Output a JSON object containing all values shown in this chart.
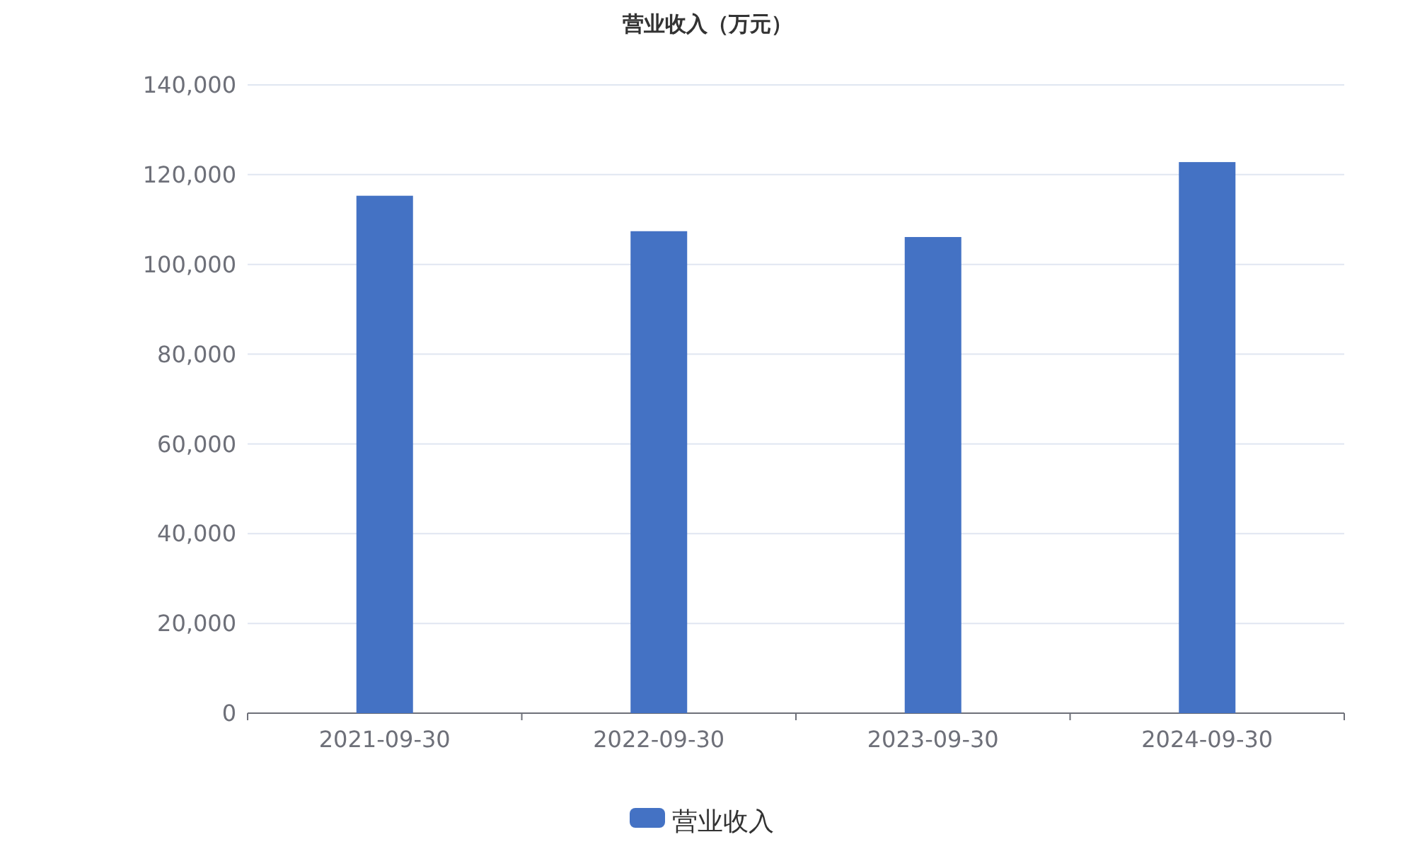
{
  "chart_data": {
    "type": "bar",
    "title": "营业收入（万元）",
    "categories": [
      "2021-09-30",
      "2022-09-30",
      "2023-09-30",
      "2024-09-30"
    ],
    "series": [
      {
        "name": "营业收入",
        "color": "#4472c4",
        "values": [
          115300,
          107400,
          106100,
          122800
        ]
      }
    ],
    "ylim": [
      0,
      140000
    ],
    "yticks": [
      {
        "value": 0,
        "label": "0"
      },
      {
        "value": 20000,
        "label": "20,000"
      },
      {
        "value": 40000,
        "label": "40,000"
      },
      {
        "value": 60000,
        "label": "60,000"
      },
      {
        "value": 80000,
        "label": "80,000"
      },
      {
        "value": 100000,
        "label": "100,000"
      },
      {
        "value": 120000,
        "label": "120,000"
      },
      {
        "value": 140000,
        "label": "140,000"
      }
    ],
    "grid": "y",
    "legend": "bottom"
  }
}
